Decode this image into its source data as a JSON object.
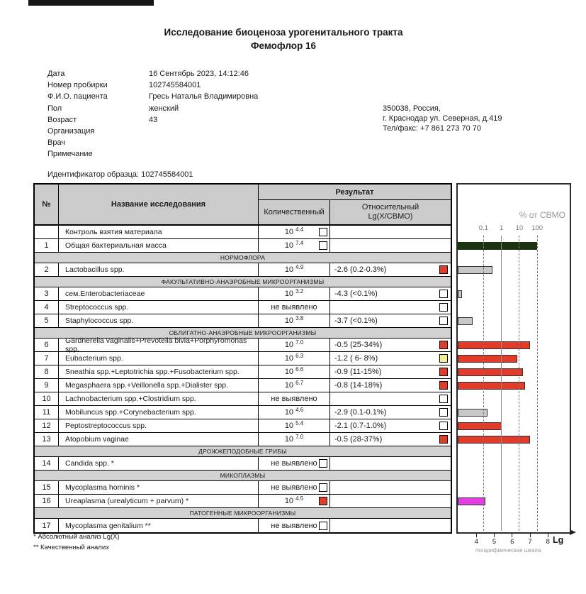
{
  "report": {
    "title": "Исследование биоценоза урогенитального тракта",
    "subtitle": "Фемофлор 16",
    "sample_id_line": "Идентификатор образца: 102745584001"
  },
  "patient_info": {
    "fields": [
      {
        "label": "Дата",
        "value": "16 Сентябрь 2023, 14:12:46"
      },
      {
        "label": "Номер пробирки",
        "value": "102745584001"
      },
      {
        "label": "Ф.И.О. пациента",
        "value": "Гресь Наталья Владимировна"
      },
      {
        "label": "Пол",
        "value": "женский"
      },
      {
        "label": "Возраст",
        "value": "43"
      },
      {
        "label": "Организация",
        "value": ""
      },
      {
        "label": "Врач",
        "value": ""
      },
      {
        "label": "Примечание",
        "value": ""
      }
    ]
  },
  "clinic": {
    "lines": [
      "350038, Россия,",
      "г. Краснодар ул. Северная, д.419",
      "Тел/факс: +7 861 273 70 70"
    ]
  },
  "colors": {
    "red": "#e23b2a",
    "yellow": "#f2ee8d",
    "magenta": "#e23ce2",
    "dark_green": "#1b330e",
    "bar_gray": "#c8c8c8",
    "marker_white": "#ffffff"
  },
  "table": {
    "headers": {
      "num": "№",
      "name": "Название исследования",
      "result": "Результат",
      "quantitative": "Количественный",
      "relative_1": "Относительный",
      "relative_2": "Lg(X/СВМО)"
    },
    "rows": [
      {
        "type": "test",
        "num": "",
        "name": "Контроль взятия материала",
        "qty": {
          "base": "10",
          "exp": "4.4"
        },
        "rel": "",
        "marker": "white",
        "marker_col": "qty",
        "bar": null
      },
      {
        "type": "test",
        "num": "1",
        "name": "Общая бактериальная масса",
        "qty": {
          "base": "10",
          "exp": "7.4"
        },
        "rel": "",
        "marker": "white",
        "marker_col": "qty",
        "bar": {
          "lg": 7.4,
          "color_key": "dark_green"
        }
      },
      {
        "type": "section",
        "label": "НОРМОФЛОРА"
      },
      {
        "type": "test",
        "num": "2",
        "name": "Lactobacillus spp.",
        "qty": {
          "base": "10",
          "exp": "4.9"
        },
        "rel": "-2.6 (0.2-0.3%)",
        "marker": "red",
        "marker_col": "rel",
        "bar": {
          "lg": 4.9,
          "color_key": "bar_gray"
        }
      },
      {
        "type": "section",
        "label": "ФАКУЛЬТАТИВНО-АНАЭРОБНЫЕ МИКРООРГАНИЗМЫ"
      },
      {
        "type": "test",
        "num": "3",
        "name": "сем.Enterobacteriaceae",
        "qty": {
          "base": "10",
          "exp": "3.2"
        },
        "rel": "-4.3 (<0.1%)",
        "marker": "white",
        "marker_col": "rel",
        "bar": {
          "lg": 3.2,
          "color_key": "bar_gray"
        }
      },
      {
        "type": "test",
        "num": "4",
        "name": "Streptococcus spp.",
        "qty": {
          "text": "не выявлено"
        },
        "rel": "",
        "marker": "white",
        "marker_col": "rel",
        "bar": null
      },
      {
        "type": "test",
        "num": "5",
        "name": "Staphylococcus spp.",
        "qty": {
          "base": "10",
          "exp": "3.8"
        },
        "rel": "-3.7 (<0.1%)",
        "marker": "white",
        "marker_col": "rel",
        "bar": {
          "lg": 3.8,
          "color_key": "bar_gray"
        }
      },
      {
        "type": "section",
        "label": "ОБЛИГАТНО-АНАЭРОБНЫЕ МИКРООРГАНИЗМЫ"
      },
      {
        "type": "test",
        "num": "6",
        "name": "Gardnerella vaginalis+Prevotella bivia+Porphyromonas spp.",
        "qty": {
          "base": "10",
          "exp": "7.0"
        },
        "rel": "-0.5 (25-34%)",
        "marker": "red",
        "marker_col": "rel",
        "bar": {
          "lg": 7.0,
          "color_key": "red"
        }
      },
      {
        "type": "test",
        "num": "7",
        "name": "Eubacterium spp.",
        "qty": {
          "base": "10",
          "exp": "6.3"
        },
        "rel": "-1.2 ( 6- 8%)",
        "marker": "yellow",
        "marker_col": "rel",
        "bar": {
          "lg": 6.3,
          "color_key": "red"
        }
      },
      {
        "type": "test",
        "num": "8",
        "name": "Sneathia spp.+Leptotrichia spp.+Fusobacterium spp.",
        "qty": {
          "base": "10",
          "exp": "6.6"
        },
        "rel": "-0.9 (11-15%)",
        "marker": "red",
        "marker_col": "rel",
        "bar": {
          "lg": 6.6,
          "color_key": "red"
        }
      },
      {
        "type": "test",
        "num": "9",
        "name": "Megasphaera spp.+Veillonella spp.+Dialister spp.",
        "qty": {
          "base": "10",
          "exp": "6.7"
        },
        "rel": "-0.8 (14-18%)",
        "marker": "red",
        "marker_col": "rel",
        "bar": {
          "lg": 6.7,
          "color_key": "red"
        }
      },
      {
        "type": "test",
        "num": "10",
        "name": "Lachnobacterium spp.+Clostridium spp.",
        "qty": {
          "text": "не выявлено"
        },
        "rel": "",
        "marker": "white",
        "marker_col": "rel",
        "bar": null
      },
      {
        "type": "test",
        "num": "11",
        "name": "Mobiluncus spp.+Corynebacterium spp.",
        "qty": {
          "base": "10",
          "exp": "4.6"
        },
        "rel": "-2.9 (0.1-0.1%)",
        "marker": "white",
        "marker_col": "rel",
        "bar": {
          "lg": 4.6,
          "color_key": "bar_gray"
        }
      },
      {
        "type": "test",
        "num": "12",
        "name": "Peptostreptococcus spp.",
        "qty": {
          "base": "10",
          "exp": "5.4"
        },
        "rel": "-2.1 (0.7-1.0%)",
        "marker": "white",
        "marker_col": "rel",
        "bar": {
          "lg": 5.4,
          "color_key": "red"
        }
      },
      {
        "type": "test",
        "num": "13",
        "name": "Atopobium vaginae",
        "qty": {
          "base": "10",
          "exp": "7.0"
        },
        "rel": "-0.5 (28-37%)",
        "marker": "red",
        "marker_col": "rel",
        "bar": {
          "lg": 7.0,
          "color_key": "red"
        }
      },
      {
        "type": "section",
        "label": "ДРОЖЖЕПОДОБНЫЕ ГРИБЫ"
      },
      {
        "type": "test",
        "num": "14",
        "name": "Candida spp. *",
        "qty": {
          "text": "не выявлено"
        },
        "rel": "",
        "marker": "white",
        "marker_col": "qty",
        "bar": null
      },
      {
        "type": "section",
        "label": "МИКОПЛАЗМЫ"
      },
      {
        "type": "test",
        "num": "15",
        "name": "Mycoplasma hominis *",
        "qty": {
          "text": "не выявлено"
        },
        "rel": "",
        "marker": "white",
        "marker_col": "qty",
        "bar": null
      },
      {
        "type": "test",
        "num": "16",
        "name": "Ureaplasma (urealyticum + parvum) *",
        "qty": {
          "base": "10",
          "exp": "4.5"
        },
        "rel": "",
        "marker": "red",
        "marker_col": "qty",
        "bar": {
          "lg": 4.5,
          "color_key": "magenta"
        }
      },
      {
        "type": "section",
        "label": "ПАТОГЕННЫЕ МИКРООРГАНИЗМЫ"
      },
      {
        "type": "test",
        "num": "17",
        "name": "Mycoplasma genitalium **",
        "qty": {
          "text": "не выявлено"
        },
        "rel": "",
        "marker": "white",
        "marker_col": "qty",
        "bar": null
      }
    ]
  },
  "footnotes": [
    "*  Абсолютный анализ Lg(X)",
    "** Качественный анализ"
  ],
  "chart_data": {
    "type": "bar",
    "orientation": "horizontal",
    "x_scale": "logarithmic",
    "top_axis_label": "% от СВМО",
    "top_axis_ticks": [
      "0.1",
      "1",
      "10",
      "100"
    ],
    "top_axis_ticks_lg": [
      4.4,
      5.4,
      6.4,
      7.4
    ],
    "bottom_axis_ticks": [
      "4",
      "5",
      "6",
      "7",
      "8"
    ],
    "bottom_axis_ticks_lg": [
      4,
      5,
      6,
      7,
      8
    ],
    "bottom_axis_caption": "логарифмическая шкала",
    "bottom_axis_unit": "Lg",
    "total_mass_lg": 7.4,
    "series": [
      {
        "name": "Общая бактериальная масса",
        "lg": 7.4,
        "color": "#1b330e"
      },
      {
        "name": "Lactobacillus spp.",
        "lg": 4.9,
        "color": "#c8c8c8"
      },
      {
        "name": "сем.Enterobacteriaceae",
        "lg": 3.2,
        "color": "#c8c8c8"
      },
      {
        "name": "Staphylococcus spp.",
        "lg": 3.8,
        "color": "#c8c8c8"
      },
      {
        "name": "Gardnerella vaginalis+Prevotella bivia+Porphyromonas spp.",
        "lg": 7.0,
        "color": "#e23b2a"
      },
      {
        "name": "Eubacterium spp.",
        "lg": 6.3,
        "color": "#e23b2a"
      },
      {
        "name": "Sneathia spp.+Leptotrichia spp.+Fusobacterium spp.",
        "lg": 6.6,
        "color": "#e23b2a"
      },
      {
        "name": "Megasphaera spp.+Veillonella spp.+Dialister spp.",
        "lg": 6.7,
        "color": "#e23b2a"
      },
      {
        "name": "Mobiluncus spp.+Corynebacterium spp.",
        "lg": 4.6,
        "color": "#c8c8c8"
      },
      {
        "name": "Peptostreptococcus spp.",
        "lg": 5.4,
        "color": "#e23b2a"
      },
      {
        "name": "Atopobium vaginae",
        "lg": 7.0,
        "color": "#e23b2a"
      },
      {
        "name": "Ureaplasma (urealyticum + parvum)",
        "lg": 4.5,
        "color": "#e23ce2"
      }
    ]
  }
}
